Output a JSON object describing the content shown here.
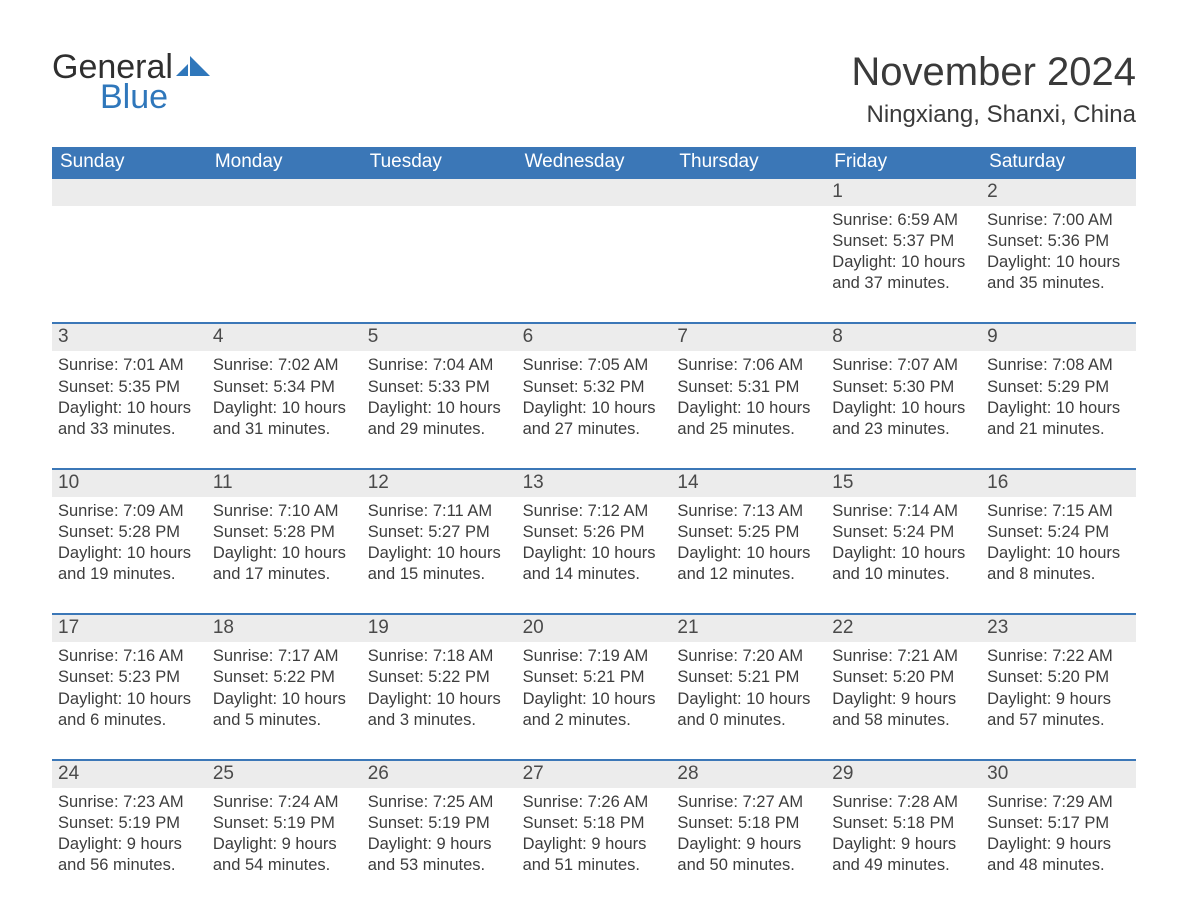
{
  "logo": {
    "text_general": "General",
    "text_blue": "Blue",
    "icon_color": "#2f77bb"
  },
  "header": {
    "month_title": "November 2024",
    "location": "Ningxiang, Shanxi, China"
  },
  "colors": {
    "header_bg": "#3b77b7",
    "header_text": "#ffffff",
    "row_divider": "#3b77b7",
    "daynum_band_bg": "#ececec",
    "body_text": "#3d3d3d",
    "page_bg": "#ffffff",
    "title_text": "#3a3a3a"
  },
  "typography": {
    "month_title_fontsize": 40,
    "location_fontsize": 24,
    "dow_fontsize": 19,
    "daynum_fontsize": 19,
    "body_fontsize": 16.5,
    "font_family": "Arial, Helvetica, sans-serif"
  },
  "calendar": {
    "type": "table",
    "columns": [
      "Sunday",
      "Monday",
      "Tuesday",
      "Wednesday",
      "Thursday",
      "Friday",
      "Saturday"
    ],
    "weeks": [
      {
        "days": [
          {
            "empty": true
          },
          {
            "empty": true
          },
          {
            "empty": true
          },
          {
            "empty": true
          },
          {
            "empty": true
          },
          {
            "num": "1",
            "sunrise": "Sunrise: 6:59 AM",
            "sunset": "Sunset: 5:37 PM",
            "day1": "Daylight: 10 hours",
            "day2": "and 37 minutes."
          },
          {
            "num": "2",
            "sunrise": "Sunrise: 7:00 AM",
            "sunset": "Sunset: 5:36 PM",
            "day1": "Daylight: 10 hours",
            "day2": "and 35 minutes."
          }
        ]
      },
      {
        "days": [
          {
            "num": "3",
            "sunrise": "Sunrise: 7:01 AM",
            "sunset": "Sunset: 5:35 PM",
            "day1": "Daylight: 10 hours",
            "day2": "and 33 minutes."
          },
          {
            "num": "4",
            "sunrise": "Sunrise: 7:02 AM",
            "sunset": "Sunset: 5:34 PM",
            "day1": "Daylight: 10 hours",
            "day2": "and 31 minutes."
          },
          {
            "num": "5",
            "sunrise": "Sunrise: 7:04 AM",
            "sunset": "Sunset: 5:33 PM",
            "day1": "Daylight: 10 hours",
            "day2": "and 29 minutes."
          },
          {
            "num": "6",
            "sunrise": "Sunrise: 7:05 AM",
            "sunset": "Sunset: 5:32 PM",
            "day1": "Daylight: 10 hours",
            "day2": "and 27 minutes."
          },
          {
            "num": "7",
            "sunrise": "Sunrise: 7:06 AM",
            "sunset": "Sunset: 5:31 PM",
            "day1": "Daylight: 10 hours",
            "day2": "and 25 minutes."
          },
          {
            "num": "8",
            "sunrise": "Sunrise: 7:07 AM",
            "sunset": "Sunset: 5:30 PM",
            "day1": "Daylight: 10 hours",
            "day2": "and 23 minutes."
          },
          {
            "num": "9",
            "sunrise": "Sunrise: 7:08 AM",
            "sunset": "Sunset: 5:29 PM",
            "day1": "Daylight: 10 hours",
            "day2": "and 21 minutes."
          }
        ]
      },
      {
        "days": [
          {
            "num": "10",
            "sunrise": "Sunrise: 7:09 AM",
            "sunset": "Sunset: 5:28 PM",
            "day1": "Daylight: 10 hours",
            "day2": "and 19 minutes."
          },
          {
            "num": "11",
            "sunrise": "Sunrise: 7:10 AM",
            "sunset": "Sunset: 5:28 PM",
            "day1": "Daylight: 10 hours",
            "day2": "and 17 minutes."
          },
          {
            "num": "12",
            "sunrise": "Sunrise: 7:11 AM",
            "sunset": "Sunset: 5:27 PM",
            "day1": "Daylight: 10 hours",
            "day2": "and 15 minutes."
          },
          {
            "num": "13",
            "sunrise": "Sunrise: 7:12 AM",
            "sunset": "Sunset: 5:26 PM",
            "day1": "Daylight: 10 hours",
            "day2": "and 14 minutes."
          },
          {
            "num": "14",
            "sunrise": "Sunrise: 7:13 AM",
            "sunset": "Sunset: 5:25 PM",
            "day1": "Daylight: 10 hours",
            "day2": "and 12 minutes."
          },
          {
            "num": "15",
            "sunrise": "Sunrise: 7:14 AM",
            "sunset": "Sunset: 5:24 PM",
            "day1": "Daylight: 10 hours",
            "day2": "and 10 minutes."
          },
          {
            "num": "16",
            "sunrise": "Sunrise: 7:15 AM",
            "sunset": "Sunset: 5:24 PM",
            "day1": "Daylight: 10 hours",
            "day2": "and 8 minutes."
          }
        ]
      },
      {
        "days": [
          {
            "num": "17",
            "sunrise": "Sunrise: 7:16 AM",
            "sunset": "Sunset: 5:23 PM",
            "day1": "Daylight: 10 hours",
            "day2": "and 6 minutes."
          },
          {
            "num": "18",
            "sunrise": "Sunrise: 7:17 AM",
            "sunset": "Sunset: 5:22 PM",
            "day1": "Daylight: 10 hours",
            "day2": "and 5 minutes."
          },
          {
            "num": "19",
            "sunrise": "Sunrise: 7:18 AM",
            "sunset": "Sunset: 5:22 PM",
            "day1": "Daylight: 10 hours",
            "day2": "and 3 minutes."
          },
          {
            "num": "20",
            "sunrise": "Sunrise: 7:19 AM",
            "sunset": "Sunset: 5:21 PM",
            "day1": "Daylight: 10 hours",
            "day2": "and 2 minutes."
          },
          {
            "num": "21",
            "sunrise": "Sunrise: 7:20 AM",
            "sunset": "Sunset: 5:21 PM",
            "day1": "Daylight: 10 hours",
            "day2": "and 0 minutes."
          },
          {
            "num": "22",
            "sunrise": "Sunrise: 7:21 AM",
            "sunset": "Sunset: 5:20 PM",
            "day1": "Daylight: 9 hours",
            "day2": "and 58 minutes."
          },
          {
            "num": "23",
            "sunrise": "Sunrise: 7:22 AM",
            "sunset": "Sunset: 5:20 PM",
            "day1": "Daylight: 9 hours",
            "day2": "and 57 minutes."
          }
        ]
      },
      {
        "days": [
          {
            "num": "24",
            "sunrise": "Sunrise: 7:23 AM",
            "sunset": "Sunset: 5:19 PM",
            "day1": "Daylight: 9 hours",
            "day2": "and 56 minutes."
          },
          {
            "num": "25",
            "sunrise": "Sunrise: 7:24 AM",
            "sunset": "Sunset: 5:19 PM",
            "day1": "Daylight: 9 hours",
            "day2": "and 54 minutes."
          },
          {
            "num": "26",
            "sunrise": "Sunrise: 7:25 AM",
            "sunset": "Sunset: 5:19 PM",
            "day1": "Daylight: 9 hours",
            "day2": "and 53 minutes."
          },
          {
            "num": "27",
            "sunrise": "Sunrise: 7:26 AM",
            "sunset": "Sunset: 5:18 PM",
            "day1": "Daylight: 9 hours",
            "day2": "and 51 minutes."
          },
          {
            "num": "28",
            "sunrise": "Sunrise: 7:27 AM",
            "sunset": "Sunset: 5:18 PM",
            "day1": "Daylight: 9 hours",
            "day2": "and 50 minutes."
          },
          {
            "num": "29",
            "sunrise": "Sunrise: 7:28 AM",
            "sunset": "Sunset: 5:18 PM",
            "day1": "Daylight: 9 hours",
            "day2": "and 49 minutes."
          },
          {
            "num": "30",
            "sunrise": "Sunrise: 7:29 AM",
            "sunset": "Sunset: 5:17 PM",
            "day1": "Daylight: 9 hours",
            "day2": "and 48 minutes."
          }
        ]
      }
    ]
  }
}
